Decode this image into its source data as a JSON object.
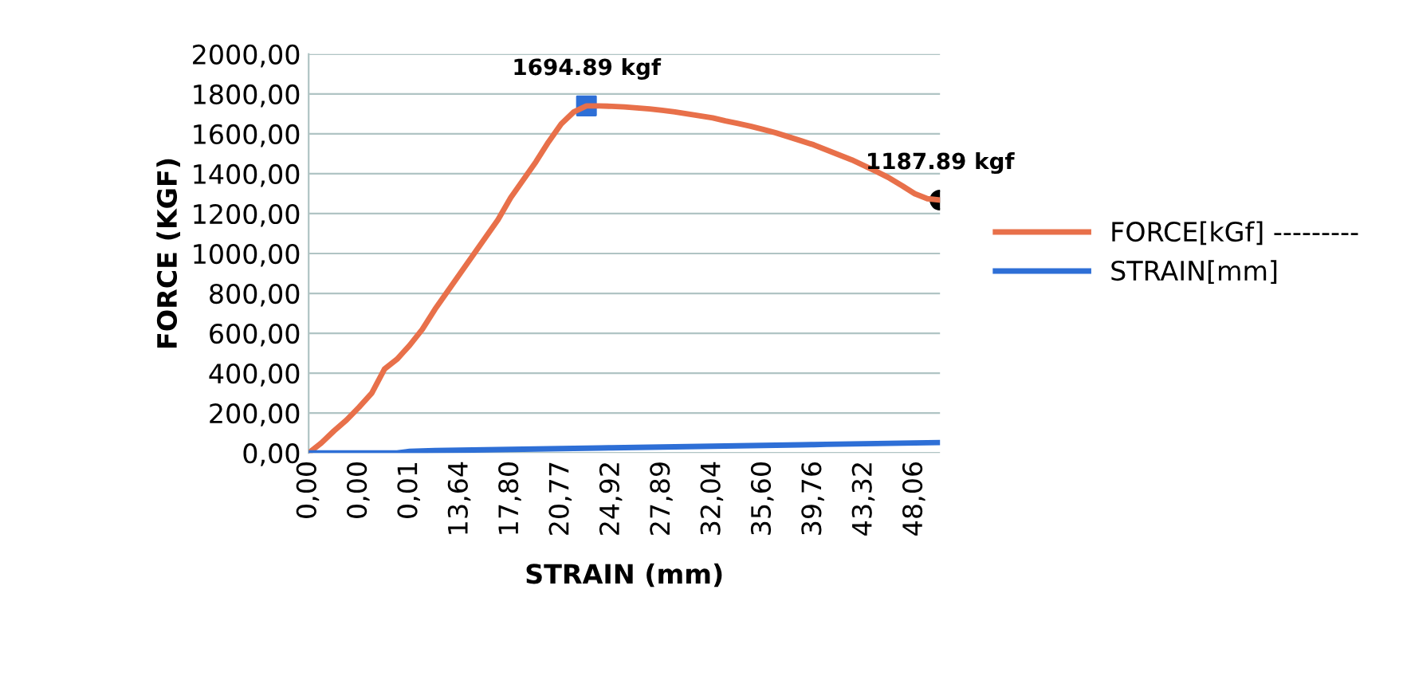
{
  "chart_data": {
    "type": "line",
    "xlabel": "STRAIN (mm)",
    "ylabel": "FORCE (KGF)",
    "categories": [
      "0,00",
      null,
      null,
      null,
      "0,00",
      null,
      null,
      null,
      "0,01",
      null,
      null,
      null,
      "13,64",
      null,
      null,
      null,
      "17,80",
      null,
      null,
      null,
      "20,77",
      null,
      null,
      null,
      "24,92",
      null,
      null,
      null,
      "27,89",
      null,
      null,
      null,
      "32,04",
      null,
      null,
      null,
      "35,60",
      null,
      null,
      null,
      "39,76",
      null,
      null,
      null,
      "43,32",
      null,
      null,
      null,
      "48,06",
      null,
      null
    ],
    "series": [
      {
        "name": "FORCE[kGf] ---------",
        "color": "#e8704a",
        "values": [
          0,
          50,
          110,
          165,
          230,
          300,
          420,
          470,
          540,
          620,
          720,
          810,
          900,
          990,
          1080,
          1170,
          1280,
          1370,
          1460,
          1560,
          1650,
          1710,
          1740,
          1740,
          1738,
          1735,
          1730,
          1725,
          1718,
          1710,
          1700,
          1690,
          1680,
          1665,
          1652,
          1638,
          1622,
          1605,
          1585,
          1565,
          1545,
          1520,
          1495,
          1470,
          1440,
          1410,
          1378,
          1340,
          1300,
          1275,
          1268
        ]
      },
      {
        "name": "STRAIN[mm]",
        "color": "#2e6fd6",
        "values": [
          0,
          0,
          0,
          0,
          0,
          0,
          0,
          0,
          8,
          10,
          12,
          13,
          14,
          15,
          16,
          17,
          18,
          19,
          20,
          21,
          22,
          23,
          24,
          25,
          26,
          27,
          28,
          29,
          30,
          31,
          32,
          33,
          34,
          35,
          36,
          37,
          38,
          39,
          40,
          41,
          42,
          43,
          44,
          45,
          46,
          47,
          48,
          49,
          50,
          51,
          52
        ]
      },
      {
        "type": "scatter",
        "marker": "square",
        "color": "#2e6fd6",
        "values": [
          null,
          null,
          null,
          null,
          null,
          null,
          null,
          null,
          null,
          null,
          null,
          null,
          null,
          null,
          null,
          null,
          null,
          null,
          null,
          null,
          null,
          null,
          1740,
          null,
          null,
          null,
          null,
          null,
          null,
          null,
          null,
          null,
          null,
          null,
          null,
          null,
          null,
          null,
          null,
          null,
          null,
          null,
          null,
          null,
          null,
          null,
          null,
          null,
          null,
          null,
          null
        ]
      },
      {
        "type": "scatter",
        "marker": "circle",
        "color": "#000000",
        "values": [
          null,
          null,
          null,
          null,
          null,
          null,
          null,
          null,
          null,
          null,
          null,
          null,
          null,
          null,
          null,
          null,
          null,
          null,
          null,
          null,
          null,
          null,
          null,
          null,
          null,
          null,
          null,
          null,
          null,
          null,
          null,
          null,
          null,
          null,
          null,
          null,
          null,
          null,
          null,
          null,
          null,
          null,
          null,
          null,
          null,
          null,
          null,
          null,
          null,
          null,
          1268
        ]
      }
    ],
    "annotations": [
      "1694.89 kgf",
      "1187.89 kgf"
    ],
    "ylim": [
      0,
      2000
    ],
    "yticks": [
      {
        "value": 0,
        "label": "0,00"
      },
      {
        "value": 200,
        "label": "200,00"
      },
      {
        "value": 400,
        "label": "400,00"
      },
      {
        "value": 600,
        "label": "600,00"
      },
      {
        "value": 800,
        "label": "800,00"
      },
      {
        "value": 1000,
        "label": "1000,00"
      },
      {
        "value": 1200,
        "label": "1200,00"
      },
      {
        "value": 1400,
        "label": "1400,00"
      },
      {
        "value": 1600,
        "label": "1600,00"
      },
      {
        "value": 1800,
        "label": "1800,00"
      },
      {
        "value": 2000,
        "label": "2000,00"
      }
    ],
    "grid": "y",
    "legend": "right",
    "marker": "none",
    "line_style": "solid"
  }
}
